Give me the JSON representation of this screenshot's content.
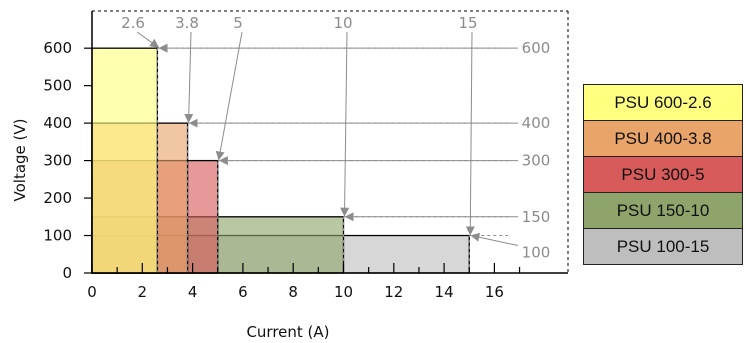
{
  "chart_data": {
    "type": "bar",
    "title": "",
    "xlabel": "Current (A)",
    "ylabel": "Voltage (V)",
    "xlim": [
      0,
      18
    ],
    "ylim": [
      0,
      650
    ],
    "xticks": [
      0,
      2,
      4,
      6,
      8,
      10,
      12,
      14,
      16
    ],
    "yticks": [
      0,
      100,
      200,
      300,
      400,
      500,
      600
    ],
    "grid": false,
    "legend_position": "right",
    "series": [
      {
        "name": "PSU 600-2.6",
        "current": 2.6,
        "voltage": 600,
        "color": "#ffff80"
      },
      {
        "name": "PSU 400-3.8",
        "current": 3.8,
        "voltage": 400,
        "color": "#e9a46a"
      },
      {
        "name": "PSU 300-5",
        "current": 5,
        "voltage": 300,
        "color": "#d85b5b"
      },
      {
        "name": "PSU 150-10",
        "current": 10,
        "voltage": 150,
        "color": "#8ea46a"
      },
      {
        "name": "PSU 100-15",
        "current": 15,
        "voltage": 100,
        "color": "#bebebe"
      }
    ],
    "current_annotations": [
      "2.6",
      "3.8",
      "5",
      "10",
      "15"
    ],
    "voltage_annotations": [
      "600",
      "400",
      "300",
      "150",
      "100"
    ]
  }
}
